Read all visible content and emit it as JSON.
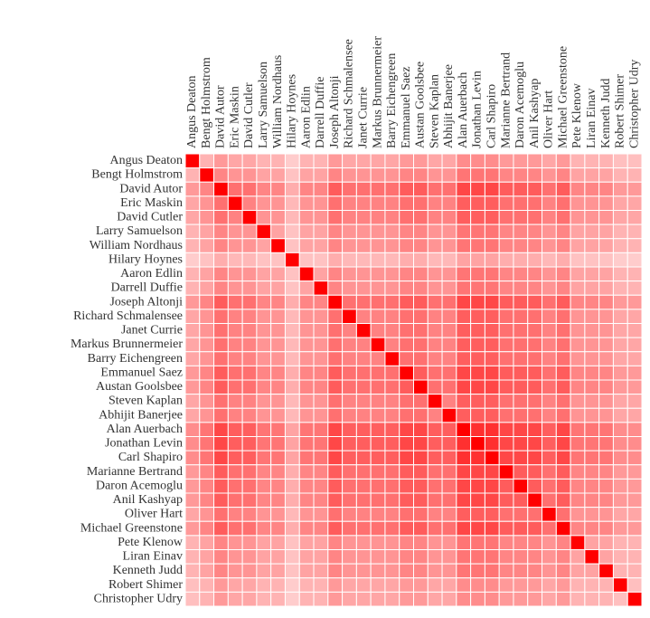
{
  "chart_data": {
    "type": "heatmap",
    "categories": [
      "Angus Deaton",
      "Bengt Holmstrom",
      "David Autor",
      "Eric Maskin",
      "David Cutler",
      "Larry Samuelson",
      "William Nordhaus",
      "Hilary Hoynes",
      "Aaron Edlin",
      "Darrell Duffie",
      "Joseph Altonji",
      "Richard Schmalensee",
      "Janet Currie",
      "Markus Brunnermeier",
      "Barry Eichengreen",
      "Emmanuel Saez",
      "Austan Goolsbee",
      "Steven Kaplan",
      "Abhijit Banerjee",
      "Alan Auerbach",
      "Jonathan Levin",
      "Carl Shapiro",
      "Marianne Bertrand",
      "Daron Acemoglu",
      "Anil Kashyap",
      "Oliver Hart",
      "Michael Greenstone",
      "Pete Klenow",
      "Liran Einav",
      "Kenneth Judd",
      "Robert Shimer",
      "Christopher Udry"
    ],
    "color_low": "#ffffff",
    "color_high": "#ff0000",
    "values": [
      [
        1,
        0.3,
        0.4,
        0.35,
        0.35,
        0.3,
        0.3,
        0.2,
        0.3,
        0.3,
        0.4,
        0.35,
        0.35,
        0.35,
        0.35,
        0.4,
        0.4,
        0.35,
        0.35,
        0.45,
        0.45,
        0.45,
        0.4,
        0.4,
        0.4,
        0.35,
        0.4,
        0.3,
        0.3,
        0.3,
        0.25,
        0.25
      ],
      [
        0.3,
        1,
        0.48,
        0.42,
        0.42,
        0.36,
        0.36,
        0.24,
        0.36,
        0.36,
        0.48,
        0.42,
        0.42,
        0.42,
        0.42,
        0.48,
        0.48,
        0.42,
        0.42,
        0.54,
        0.54,
        0.54,
        0.48,
        0.48,
        0.48,
        0.42,
        0.48,
        0.36,
        0.36,
        0.36,
        0.3,
        0.3
      ],
      [
        0.4,
        0.48,
        1,
        0.56,
        0.56,
        0.48,
        0.48,
        0.32,
        0.48,
        0.48,
        0.64,
        0.56,
        0.56,
        0.56,
        0.56,
        0.64,
        0.64,
        0.56,
        0.56,
        0.72,
        0.72,
        0.72,
        0.64,
        0.64,
        0.64,
        0.56,
        0.64,
        0.48,
        0.48,
        0.48,
        0.4,
        0.4
      ],
      [
        0.35,
        0.42,
        0.56,
        1,
        0.49,
        0.42,
        0.42,
        0.28,
        0.42,
        0.42,
        0.56,
        0.49,
        0.49,
        0.49,
        0.49,
        0.56,
        0.56,
        0.49,
        0.49,
        0.63,
        0.63,
        0.63,
        0.56,
        0.56,
        0.56,
        0.49,
        0.56,
        0.42,
        0.42,
        0.42,
        0.35,
        0.35
      ],
      [
        0.35,
        0.42,
        0.56,
        0.49,
        1,
        0.42,
        0.42,
        0.28,
        0.42,
        0.42,
        0.56,
        0.49,
        0.49,
        0.49,
        0.49,
        0.56,
        0.56,
        0.49,
        0.49,
        0.63,
        0.63,
        0.63,
        0.56,
        0.56,
        0.56,
        0.49,
        0.56,
        0.42,
        0.42,
        0.42,
        0.35,
        0.35
      ],
      [
        0.3,
        0.36,
        0.48,
        0.42,
        0.42,
        1,
        0.36,
        0.24,
        0.36,
        0.36,
        0.48,
        0.42,
        0.42,
        0.42,
        0.42,
        0.48,
        0.48,
        0.42,
        0.42,
        0.54,
        0.54,
        0.54,
        0.48,
        0.48,
        0.48,
        0.42,
        0.48,
        0.36,
        0.36,
        0.36,
        0.3,
        0.3
      ],
      [
        0.3,
        0.36,
        0.48,
        0.42,
        0.42,
        0.36,
        1,
        0.24,
        0.36,
        0.36,
        0.48,
        0.42,
        0.42,
        0.42,
        0.42,
        0.48,
        0.48,
        0.42,
        0.42,
        0.54,
        0.54,
        0.54,
        0.48,
        0.48,
        0.48,
        0.42,
        0.48,
        0.36,
        0.36,
        0.36,
        0.3,
        0.3
      ],
      [
        0.2,
        0.24,
        0.32,
        0.28,
        0.28,
        0.24,
        0.24,
        1,
        0.24,
        0.24,
        0.32,
        0.28,
        0.28,
        0.28,
        0.28,
        0.32,
        0.32,
        0.28,
        0.28,
        0.36,
        0.36,
        0.36,
        0.32,
        0.32,
        0.32,
        0.28,
        0.32,
        0.24,
        0.24,
        0.24,
        0.2,
        0.2
      ],
      [
        0.3,
        0.36,
        0.48,
        0.42,
        0.42,
        0.36,
        0.36,
        0.24,
        1,
        0.36,
        0.48,
        0.42,
        0.42,
        0.42,
        0.42,
        0.48,
        0.48,
        0.42,
        0.42,
        0.54,
        0.54,
        0.54,
        0.48,
        0.48,
        0.48,
        0.42,
        0.48,
        0.36,
        0.36,
        0.36,
        0.3,
        0.3
      ],
      [
        0.3,
        0.36,
        0.48,
        0.42,
        0.42,
        0.36,
        0.36,
        0.24,
        0.36,
        1,
        0.48,
        0.42,
        0.42,
        0.42,
        0.42,
        0.48,
        0.48,
        0.42,
        0.42,
        0.54,
        0.54,
        0.54,
        0.48,
        0.48,
        0.48,
        0.42,
        0.48,
        0.36,
        0.36,
        0.36,
        0.3,
        0.3
      ],
      [
        0.4,
        0.48,
        0.64,
        0.56,
        0.56,
        0.48,
        0.48,
        0.32,
        0.48,
        0.48,
        1,
        0.56,
        0.56,
        0.56,
        0.56,
        0.64,
        0.64,
        0.56,
        0.56,
        0.72,
        0.72,
        0.72,
        0.64,
        0.64,
        0.64,
        0.56,
        0.64,
        0.48,
        0.48,
        0.48,
        0.4,
        0.4
      ],
      [
        0.35,
        0.42,
        0.56,
        0.49,
        0.49,
        0.42,
        0.42,
        0.28,
        0.42,
        0.42,
        0.56,
        1,
        0.49,
        0.49,
        0.49,
        0.56,
        0.56,
        0.49,
        0.49,
        0.63,
        0.63,
        0.63,
        0.56,
        0.56,
        0.56,
        0.49,
        0.56,
        0.42,
        0.42,
        0.42,
        0.35,
        0.35
      ],
      [
        0.35,
        0.42,
        0.56,
        0.49,
        0.49,
        0.42,
        0.42,
        0.28,
        0.42,
        0.42,
        0.56,
        0.49,
        1,
        0.49,
        0.49,
        0.56,
        0.56,
        0.49,
        0.49,
        0.63,
        0.63,
        0.63,
        0.56,
        0.56,
        0.56,
        0.49,
        0.56,
        0.42,
        0.42,
        0.42,
        0.35,
        0.35
      ],
      [
        0.35,
        0.42,
        0.56,
        0.49,
        0.49,
        0.42,
        0.42,
        0.28,
        0.42,
        0.42,
        0.56,
        0.49,
        0.49,
        1,
        0.49,
        0.56,
        0.56,
        0.49,
        0.49,
        0.63,
        0.63,
        0.63,
        0.56,
        0.56,
        0.56,
        0.49,
        0.56,
        0.42,
        0.42,
        0.42,
        0.35,
        0.35
      ],
      [
        0.35,
        0.42,
        0.56,
        0.49,
        0.49,
        0.42,
        0.42,
        0.28,
        0.42,
        0.42,
        0.56,
        0.49,
        0.49,
        0.49,
        1,
        0.56,
        0.56,
        0.49,
        0.49,
        0.63,
        0.63,
        0.63,
        0.56,
        0.56,
        0.56,
        0.49,
        0.56,
        0.42,
        0.42,
        0.42,
        0.35,
        0.35
      ],
      [
        0.4,
        0.48,
        0.64,
        0.56,
        0.56,
        0.48,
        0.48,
        0.32,
        0.48,
        0.48,
        0.64,
        0.56,
        0.56,
        0.56,
        0.56,
        1,
        0.64,
        0.56,
        0.56,
        0.72,
        0.72,
        0.72,
        0.64,
        0.64,
        0.64,
        0.56,
        0.64,
        0.48,
        0.48,
        0.48,
        0.4,
        0.4
      ],
      [
        0.4,
        0.48,
        0.64,
        0.56,
        0.56,
        0.48,
        0.48,
        0.32,
        0.48,
        0.48,
        0.64,
        0.56,
        0.56,
        0.56,
        0.56,
        0.64,
        1,
        0.56,
        0.56,
        0.72,
        0.72,
        0.72,
        0.64,
        0.64,
        0.64,
        0.56,
        0.64,
        0.48,
        0.48,
        0.48,
        0.4,
        0.4
      ],
      [
        0.35,
        0.42,
        0.56,
        0.49,
        0.49,
        0.42,
        0.42,
        0.28,
        0.42,
        0.42,
        0.56,
        0.49,
        0.49,
        0.49,
        0.49,
        0.56,
        0.56,
        1,
        0.49,
        0.63,
        0.63,
        0.63,
        0.56,
        0.56,
        0.56,
        0.49,
        0.56,
        0.42,
        0.42,
        0.42,
        0.35,
        0.35
      ],
      [
        0.35,
        0.42,
        0.56,
        0.49,
        0.49,
        0.42,
        0.42,
        0.28,
        0.42,
        0.42,
        0.56,
        0.49,
        0.49,
        0.49,
        0.49,
        0.56,
        0.56,
        0.49,
        1,
        0.63,
        0.63,
        0.63,
        0.56,
        0.56,
        0.56,
        0.49,
        0.56,
        0.42,
        0.42,
        0.42,
        0.35,
        0.35
      ],
      [
        0.45,
        0.54,
        0.72,
        0.63,
        0.63,
        0.54,
        0.54,
        0.36,
        0.54,
        0.54,
        0.72,
        0.63,
        0.63,
        0.63,
        0.63,
        0.72,
        0.72,
        0.63,
        0.63,
        1,
        0.81,
        0.81,
        0.72,
        0.72,
        0.72,
        0.63,
        0.72,
        0.54,
        0.54,
        0.54,
        0.45,
        0.45
      ],
      [
        0.45,
        0.54,
        0.72,
        0.63,
        0.63,
        0.54,
        0.54,
        0.36,
        0.54,
        0.54,
        0.72,
        0.63,
        0.63,
        0.63,
        0.63,
        0.72,
        0.72,
        0.63,
        0.63,
        0.81,
        1,
        0.81,
        0.72,
        0.72,
        0.72,
        0.63,
        0.72,
        0.54,
        0.54,
        0.54,
        0.45,
        0.45
      ],
      [
        0.45,
        0.54,
        0.72,
        0.63,
        0.63,
        0.54,
        0.54,
        0.36,
        0.54,
        0.54,
        0.72,
        0.63,
        0.63,
        0.63,
        0.63,
        0.72,
        0.72,
        0.63,
        0.63,
        0.81,
        0.81,
        1,
        0.72,
        0.72,
        0.72,
        0.63,
        0.72,
        0.54,
        0.54,
        0.54,
        0.45,
        0.45
      ],
      [
        0.4,
        0.48,
        0.64,
        0.56,
        0.56,
        0.48,
        0.48,
        0.32,
        0.48,
        0.48,
        0.64,
        0.56,
        0.56,
        0.56,
        0.56,
        0.64,
        0.64,
        0.56,
        0.56,
        0.72,
        0.72,
        0.72,
        1,
        0.64,
        0.64,
        0.56,
        0.64,
        0.48,
        0.48,
        0.48,
        0.4,
        0.4
      ],
      [
        0.4,
        0.48,
        0.64,
        0.56,
        0.56,
        0.48,
        0.48,
        0.32,
        0.48,
        0.48,
        0.64,
        0.56,
        0.56,
        0.56,
        0.56,
        0.64,
        0.64,
        0.56,
        0.56,
        0.72,
        0.72,
        0.72,
        0.64,
        1,
        0.64,
        0.56,
        0.64,
        0.48,
        0.48,
        0.48,
        0.4,
        0.4
      ],
      [
        0.4,
        0.48,
        0.64,
        0.56,
        0.56,
        0.48,
        0.48,
        0.32,
        0.48,
        0.48,
        0.64,
        0.56,
        0.56,
        0.56,
        0.56,
        0.64,
        0.64,
        0.56,
        0.56,
        0.72,
        0.72,
        0.72,
        0.64,
        0.64,
        1,
        0.56,
        0.64,
        0.48,
        0.48,
        0.48,
        0.4,
        0.4
      ],
      [
        0.35,
        0.42,
        0.56,
        0.49,
        0.49,
        0.42,
        0.42,
        0.28,
        0.42,
        0.42,
        0.56,
        0.49,
        0.49,
        0.49,
        0.49,
        0.56,
        0.56,
        0.49,
        0.49,
        0.63,
        0.63,
        0.63,
        0.56,
        0.56,
        0.56,
        1,
        0.56,
        0.42,
        0.42,
        0.42,
        0.35,
        0.35
      ],
      [
        0.4,
        0.48,
        0.64,
        0.56,
        0.56,
        0.48,
        0.48,
        0.32,
        0.48,
        0.48,
        0.64,
        0.56,
        0.56,
        0.56,
        0.56,
        0.64,
        0.64,
        0.56,
        0.56,
        0.72,
        0.72,
        0.72,
        0.64,
        0.64,
        0.64,
        0.56,
        1,
        0.48,
        0.48,
        0.48,
        0.4,
        0.4
      ],
      [
        0.3,
        0.36,
        0.48,
        0.42,
        0.42,
        0.36,
        0.36,
        0.24,
        0.36,
        0.36,
        0.48,
        0.42,
        0.42,
        0.42,
        0.42,
        0.48,
        0.48,
        0.42,
        0.42,
        0.54,
        0.54,
        0.54,
        0.48,
        0.48,
        0.48,
        0.42,
        0.48,
        1,
        0.36,
        0.36,
        0.3,
        0.3
      ],
      [
        0.3,
        0.36,
        0.48,
        0.42,
        0.42,
        0.36,
        0.36,
        0.24,
        0.36,
        0.36,
        0.48,
        0.42,
        0.42,
        0.42,
        0.42,
        0.48,
        0.48,
        0.42,
        0.42,
        0.54,
        0.54,
        0.54,
        0.48,
        0.48,
        0.48,
        0.42,
        0.48,
        0.36,
        1,
        0.36,
        0.3,
        0.3
      ],
      [
        0.3,
        0.36,
        0.48,
        0.42,
        0.42,
        0.36,
        0.36,
        0.24,
        0.36,
        0.36,
        0.48,
        0.42,
        0.42,
        0.42,
        0.42,
        0.48,
        0.48,
        0.42,
        0.42,
        0.54,
        0.54,
        0.54,
        0.48,
        0.48,
        0.48,
        0.42,
        0.48,
        0.36,
        0.36,
        1,
        0.3,
        0.3
      ],
      [
        0.25,
        0.3,
        0.4,
        0.35,
        0.35,
        0.3,
        0.3,
        0.2,
        0.3,
        0.3,
        0.4,
        0.35,
        0.35,
        0.35,
        0.35,
        0.4,
        0.4,
        0.35,
        0.35,
        0.45,
        0.45,
        0.45,
        0.4,
        0.4,
        0.4,
        0.35,
        0.4,
        0.3,
        0.3,
        0.3,
        1,
        0.25
      ],
      [
        0.25,
        0.3,
        0.4,
        0.35,
        0.35,
        0.3,
        0.3,
        0.2,
        0.3,
        0.3,
        0.4,
        0.35,
        0.35,
        0.35,
        0.35,
        0.4,
        0.4,
        0.35,
        0.35,
        0.45,
        0.45,
        0.45,
        0.4,
        0.4,
        0.4,
        0.35,
        0.4,
        0.3,
        0.3,
        0.3,
        0.25,
        1
      ]
    ]
  }
}
